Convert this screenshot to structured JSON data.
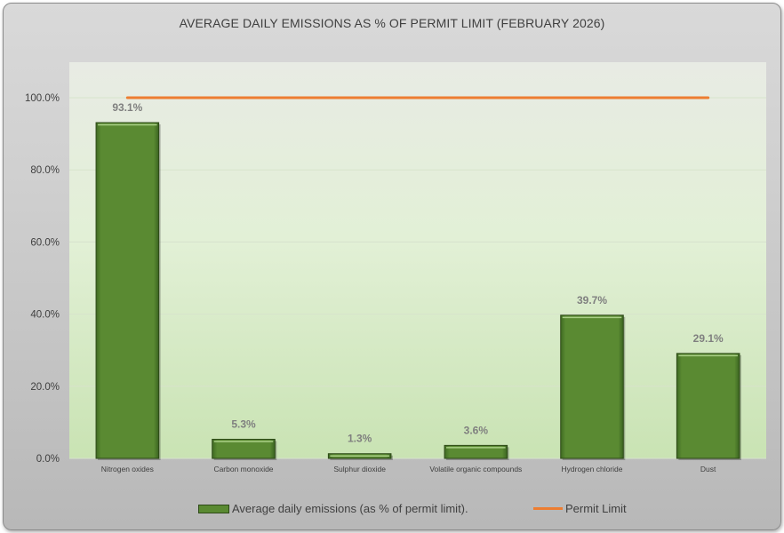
{
  "chart_data": {
    "type": "bar",
    "title": "AVERAGE DAILY EMISSIONS AS % OF PERMIT LIMIT (FEBRUARY 2026)",
    "categories": [
      "Nitrogen oxides",
      "Carbon monoxide",
      "Sulphur dioxide",
      "Volatile organic compounds",
      "Hydrogen chloride",
      "Dust"
    ],
    "series": [
      {
        "name": "Average daily emissions (as % of permit limit).",
        "type": "bar",
        "values": [
          93.1,
          5.3,
          1.3,
          3.6,
          39.7,
          29.1
        ],
        "labels": [
          "93.1%",
          "5.3%",
          "1.3%",
          "3.6%",
          "39.7%",
          "29.1%"
        ],
        "color": "#5a8a32"
      },
      {
        "name": "Permit Limit",
        "type": "line",
        "values": [
          100,
          100,
          100,
          100,
          100,
          100
        ],
        "color": "#ed7d31"
      }
    ],
    "y_ticks": [
      "0.0%",
      "20.0%",
      "40.0%",
      "60.0%",
      "80.0%",
      "100.0%"
    ],
    "ylim": [
      0,
      100
    ],
    "grid": true,
    "legend_position": "bottom"
  }
}
